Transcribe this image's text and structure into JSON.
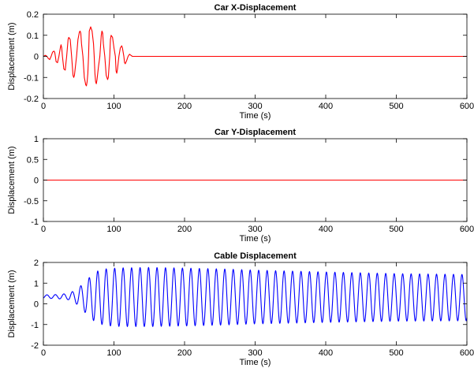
{
  "chart_data": [
    {
      "type": "line",
      "title": "Car X-Displacement",
      "xlabel": "Time (s)",
      "ylabel": "Displacement (m)",
      "xlim": [
        0,
        600
      ],
      "ylim": [
        -0.2,
        0.2
      ],
      "xticks": [
        0,
        100,
        200,
        300,
        400,
        500,
        600
      ],
      "xtick_labels": [
        "0",
        "100",
        "200",
        "300",
        "400",
        "500",
        "600"
      ],
      "yticks": [
        -0.2,
        -0.1,
        0,
        0.1,
        0.2
      ],
      "ytick_labels": [
        "-0.2",
        "-0.1",
        "0",
        "0.1",
        "0.2"
      ],
      "grid": false,
      "series": [
        {
          "color": "#ff0000",
          "x": [
            0,
            3,
            5,
            7,
            9,
            11,
            13,
            15,
            16,
            17,
            18,
            20,
            22,
            24,
            25,
            26,
            27,
            29,
            31,
            32,
            33,
            34,
            35,
            36,
            38,
            40,
            42,
            43,
            44,
            45,
            47,
            49,
            51,
            52,
            53,
            54,
            56,
            58,
            60,
            61,
            62,
            63,
            64,
            65,
            67,
            69,
            71,
            72,
            73,
            74,
            75,
            76,
            78,
            80,
            82,
            83,
            84,
            85,
            87,
            89,
            91,
            92,
            93,
            94,
            95,
            96,
            98,
            100,
            102,
            103,
            104,
            105,
            107,
            109,
            111,
            112,
            113,
            114,
            115,
            116,
            118,
            120,
            122,
            124,
            126,
            128,
            130,
            600
          ],
          "y": [
            0,
            0.005,
            0,
            -0.01,
            -0.015,
            0,
            0.02,
            0.025,
            0.02,
            0,
            -0.025,
            -0.03,
            0,
            0.04,
            0.055,
            0.04,
            0,
            -0.06,
            -0.065,
            -0.03,
            0,
            0.04,
            0.08,
            0.09,
            0.08,
            0,
            -0.09,
            -0.1,
            -0.09,
            -0.06,
            0,
            0.08,
            0.115,
            0.12,
            0.11,
            0.06,
            0,
            -0.1,
            -0.135,
            -0.14,
            -0.12,
            -0.08,
            0,
            0.12,
            0.14,
            0.12,
            0.06,
            0,
            -0.08,
            -0.12,
            -0.13,
            -0.11,
            -0.05,
            0,
            0.1,
            0.12,
            0.11,
            0.06,
            0,
            -0.09,
            -0.11,
            -0.1,
            -0.05,
            0,
            0.08,
            0.1,
            0.09,
            0.04,
            0,
            -0.07,
            -0.08,
            -0.06,
            0,
            0.04,
            0.05,
            0.04,
            0.02,
            0,
            -0.03,
            -0.035,
            -0.02,
            0,
            0.01,
            0.005,
            0,
            0,
            0,
            0
          ]
        }
      ]
    },
    {
      "type": "line",
      "title": "Car Y-Displacement",
      "xlabel": "Time (s)",
      "ylabel": "Displacement (m)",
      "xlim": [
        0,
        600
      ],
      "ylim": [
        -1,
        1
      ],
      "xticks": [
        0,
        100,
        200,
        300,
        400,
        500,
        600
      ],
      "xtick_labels": [
        "0",
        "100",
        "200",
        "300",
        "400",
        "500",
        "600"
      ],
      "yticks": [
        -1,
        -0.5,
        0,
        0.5,
        1
      ],
      "ytick_labels": [
        "-1",
        "-0.5",
        "0",
        "0.5",
        "1"
      ],
      "grid": false,
      "series": [
        {
          "color": "#ff0000",
          "x": [
            0,
            600
          ],
          "y": [
            0,
            0
          ]
        }
      ]
    },
    {
      "type": "line",
      "title": "Cable Displacement",
      "xlabel": "Time (s)",
      "ylabel": "Displacement (m)",
      "xlim": [
        0,
        600
      ],
      "ylim": [
        -2,
        2
      ],
      "xticks": [
        0,
        100,
        200,
        300,
        400,
        500,
        600
      ],
      "xtick_labels": [
        "0",
        "100",
        "200",
        "300",
        "400",
        "500",
        "600"
      ],
      "yticks": [
        -2,
        -1,
        0,
        1,
        2
      ],
      "ytick_labels": [
        "-2",
        "-1",
        "0",
        "1",
        "2"
      ],
      "grid": false,
      "series": [
        {
          "color": "#0000ff",
          "period_s": 12,
          "phase_s": 2,
          "envelope": {
            "t": [
              0,
              20,
              35,
              45,
              55,
              65,
              75,
              90,
              110,
              150,
              200,
              250,
              300,
              400,
              500,
              600
            ],
            "mean": [
              0.35,
              0.35,
              0.35,
              0.35,
              0.33,
              0.32,
              0.32,
              0.32,
              0.32,
              0.33,
              0.33,
              0.33,
              0.33,
              0.32,
              0.31,
              0.3
            ],
            "amp": [
              0.08,
              0.1,
              0.15,
              0.3,
              0.6,
              0.95,
              1.25,
              1.38,
              1.42,
              1.43,
              1.4,
              1.36,
              1.3,
              1.22,
              1.15,
              1.12
            ]
          }
        }
      ]
    }
  ]
}
